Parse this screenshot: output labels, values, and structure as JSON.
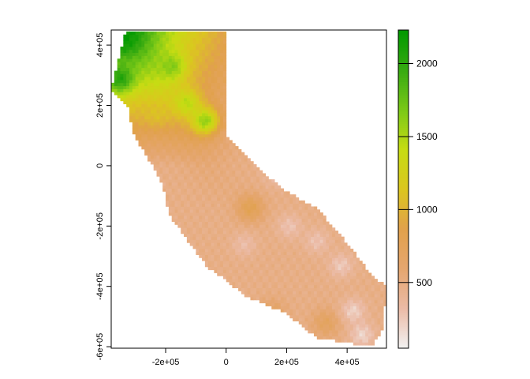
{
  "chart_data": {
    "type": "heatmap",
    "title": "",
    "xlabel": "",
    "ylabel": "",
    "xlim": [
      -380000,
      530000
    ],
    "ylim": [
      -605000,
      450000
    ],
    "x_ticks": [
      {
        "value": -200000,
        "label": "-2e+05"
      },
      {
        "value": 0,
        "label": "0"
      },
      {
        "value": 200000,
        "label": "2e+05"
      },
      {
        "value": 400000,
        "label": "4e+05"
      }
    ],
    "y_ticks": [
      {
        "value": 400000,
        "label": "4e+05"
      },
      {
        "value": 200000,
        "label": "2e+05"
      },
      {
        "value": 0,
        "label": "0"
      },
      {
        "value": -200000,
        "label": "-2e+05"
      },
      {
        "value": -400000,
        "label": "-4e+05"
      },
      {
        "value": -600000,
        "label": "-6e+05"
      }
    ],
    "colorbar": {
      "min": 50,
      "max": 2230,
      "ticks": [
        {
          "value": 500,
          "label": "500"
        },
        {
          "value": 1000,
          "label": "1000"
        },
        {
          "value": 1500,
          "label": "1500"
        },
        {
          "value": 2000,
          "label": "2000"
        }
      ],
      "colors": [
        "#F2F2F2",
        "#EBBBA6",
        "#E5A66F",
        "#E1A14B",
        "#DBC61F",
        "#C6DC13",
        "#7AC817",
        "#37AA11",
        "#009900"
      ]
    },
    "raster": {
      "description": "Raster of elevation values over California (projected coordinates); highest values in the northern Sierra / Cascade region",
      "region_outline": [
        [
          -330000,
          450000
        ],
        [
          0,
          450000
        ],
        [
          0,
          100000
        ],
        [
          100000,
          0
        ],
        [
          190000,
          -80000
        ],
        [
          300000,
          -140000
        ],
        [
          420000,
          -280000
        ],
        [
          480000,
          -360000
        ],
        [
          530000,
          -400000
        ],
        [
          520000,
          -540000
        ],
        [
          480000,
          -600000
        ],
        [
          300000,
          -570000
        ],
        [
          200000,
          -490000
        ],
        [
          60000,
          -430000
        ],
        [
          -10000,
          -370000
        ],
        [
          -60000,
          -340000
        ],
        [
          -140000,
          -230000
        ],
        [
          -190000,
          -160000
        ],
        [
          -210000,
          -60000
        ],
        [
          -250000,
          10000
        ],
        [
          -310000,
          110000
        ],
        [
          -320000,
          190000
        ],
        [
          -380000,
          250000
        ],
        [
          -350000,
          380000
        ],
        [
          -330000,
          450000
        ]
      ],
      "hotspots": [
        {
          "x": -340000,
          "y": 420000,
          "value": 2200
        },
        {
          "x": -350000,
          "y": 290000,
          "value": 2050
        },
        {
          "x": -180000,
          "y": 330000,
          "value": 1650
        },
        {
          "x": -130000,
          "y": 210000,
          "value": 1450
        },
        {
          "x": -70000,
          "y": 150000,
          "value": 1600
        },
        {
          "x": -280000,
          "y": 360000,
          "value": 1500
        },
        {
          "x": -230000,
          "y": 180000,
          "value": 1100
        },
        {
          "x": 80000,
          "y": -140000,
          "value": 800
        },
        {
          "x": 150000,
          "y": -490000,
          "value": 700
        },
        {
          "x": 330000,
          "y": -520000,
          "value": 700
        }
      ],
      "lowspots": [
        {
          "x": 210000,
          "y": -200000,
          "value": 200
        },
        {
          "x": 300000,
          "y": -250000,
          "value": 200
        },
        {
          "x": 380000,
          "y": -330000,
          "value": 150
        },
        {
          "x": 420000,
          "y": -480000,
          "value": 100
        },
        {
          "x": 450000,
          "y": -560000,
          "value": 80
        },
        {
          "x": 160000,
          "y": -30000,
          "value": 300
        },
        {
          "x": 60000,
          "y": -260000,
          "value": 250
        }
      ]
    }
  }
}
